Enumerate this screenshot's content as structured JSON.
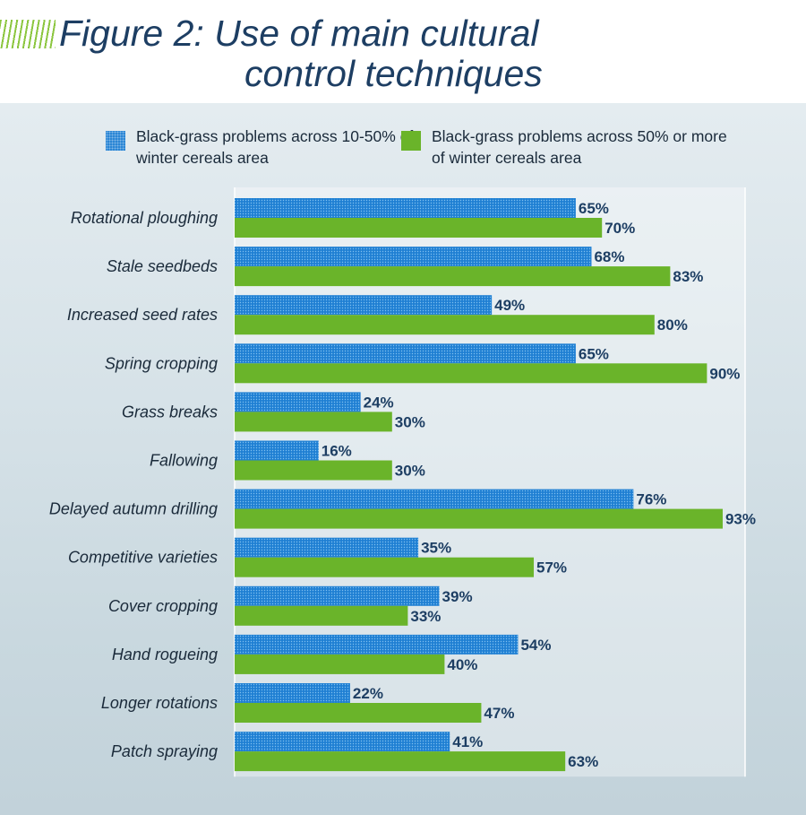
{
  "title_line1": "Figure 2: Use of main cultural",
  "title_line2": "control techniques",
  "colors": {
    "series1": "#1f7fd3",
    "series2": "#6ab42a",
    "title": "#1d3e63"
  },
  "chart_data": {
    "type": "bar",
    "orientation": "horizontal",
    "title": "Figure 2: Use of main cultural control techniques",
    "categories": [
      "Rotational ploughing",
      "Stale seedbeds",
      "Increased seed rates",
      "Spring cropping",
      "Grass breaks",
      "Fallowing",
      "Delayed autumn drilling",
      "Competitive varieties",
      "Cover cropping",
      "Hand rogueing",
      "Longer rotations",
      "Patch spraying"
    ],
    "series": [
      {
        "name": "Black-grass problems across 10-50% of winter cereals area",
        "values": [
          65,
          68,
          49,
          65,
          24,
          16,
          76,
          35,
          39,
          54,
          22,
          41
        ]
      },
      {
        "name": "Black-grass problems across 50% or more of winter cereals area",
        "values": [
          70,
          83,
          80,
          90,
          30,
          30,
          93,
          57,
          33,
          40,
          47,
          63
        ]
      }
    ],
    "value_suffix": "%",
    "xlim": [
      0,
      100
    ],
    "legend_position": "top",
    "grid": false
  }
}
